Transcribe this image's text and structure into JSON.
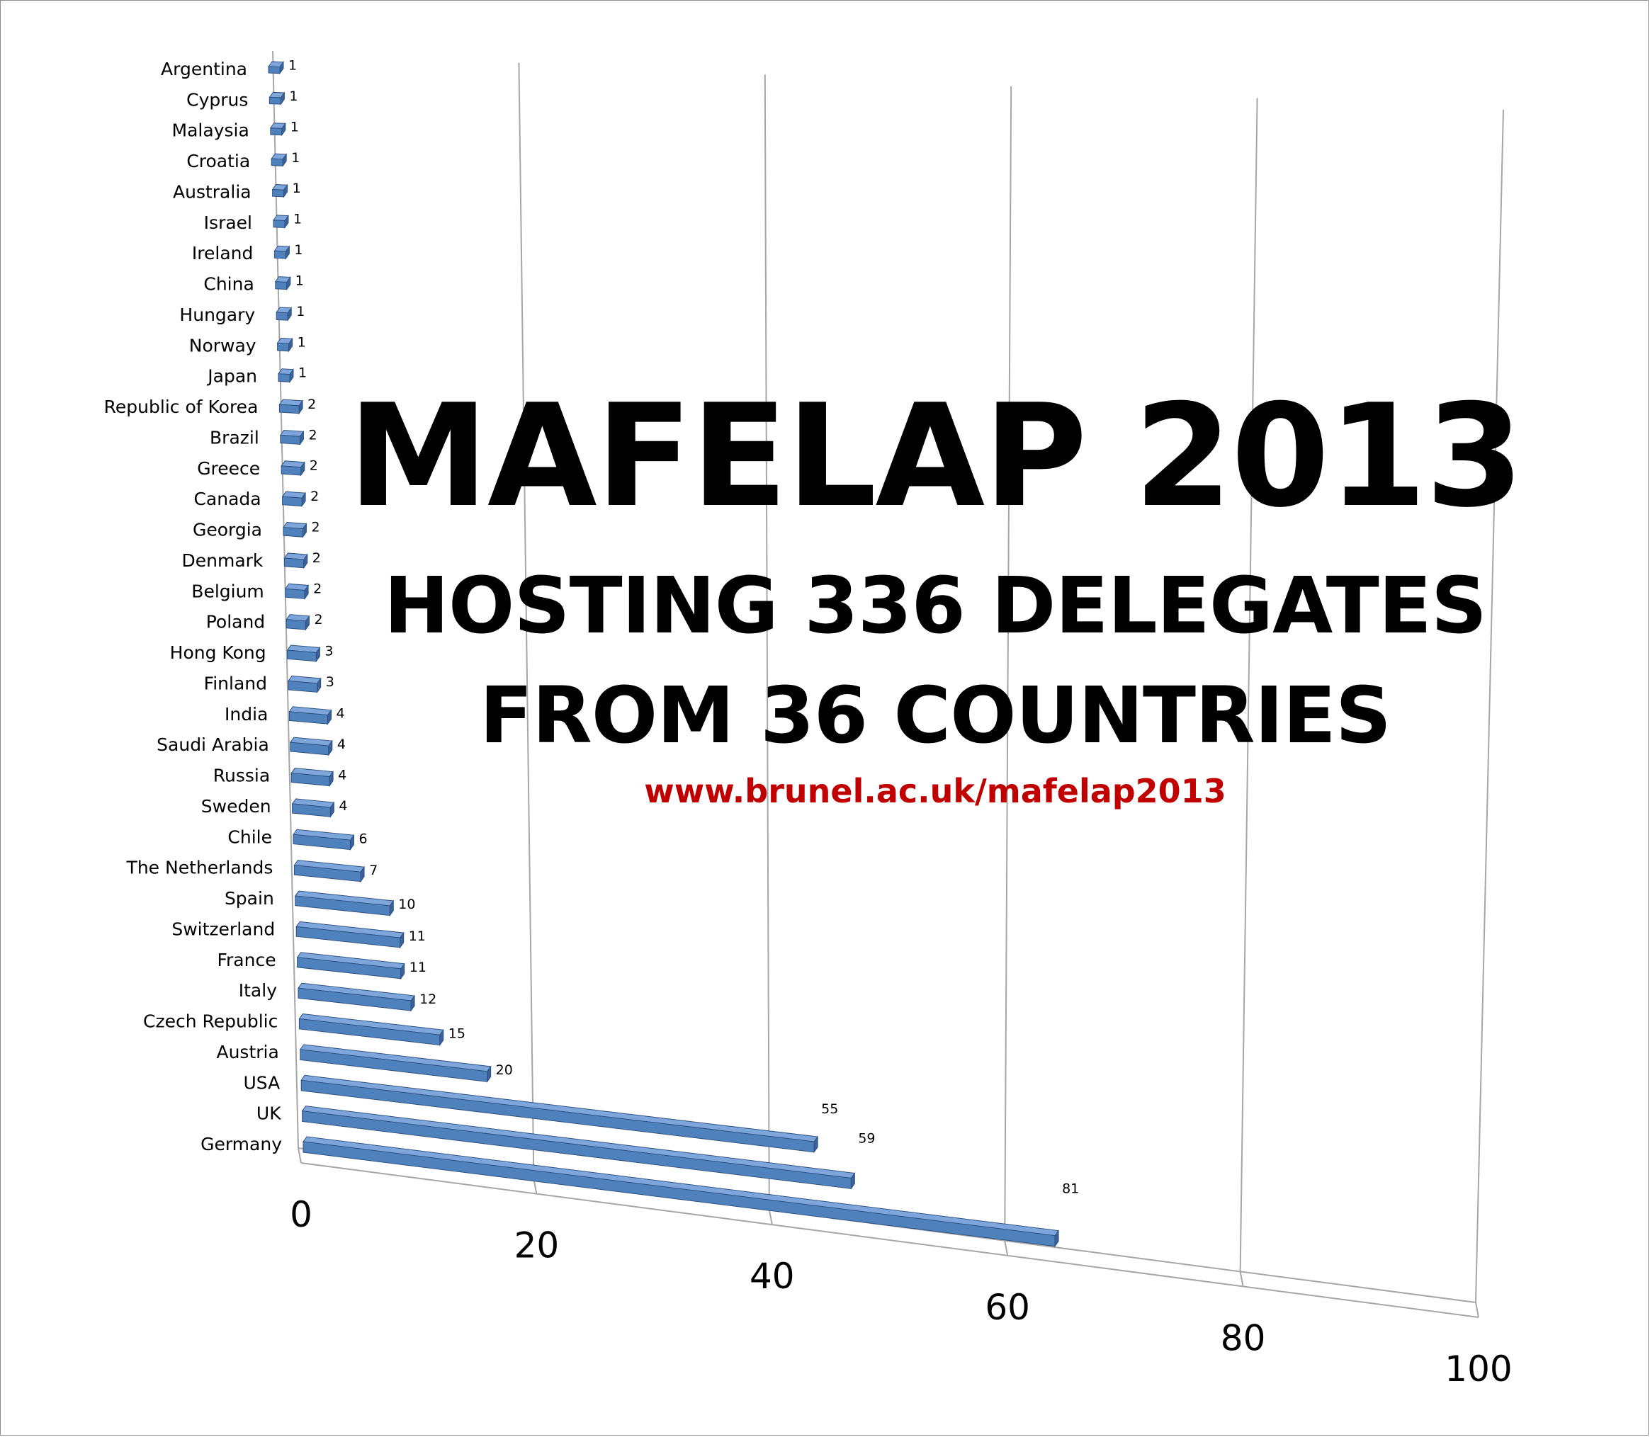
{
  "headline": {
    "title": "MAFELAP 2013",
    "subtitle_line1": "HOSTING 336 DELEGATES",
    "subtitle_line2": "FROM 36 COUNTRIES",
    "url": "www.brunel.ac.uk/mafelap2013"
  },
  "colors": {
    "bar_face": "#4f81bd",
    "bar_top": "#7ea6dc",
    "bar_end": "#3a6299",
    "bar_edge": "#2f5483",
    "gridline": "#a6a6a6",
    "url_text": "#c00000"
  },
  "chart_data": {
    "type": "bar",
    "orientation": "horizontal",
    "style": "3d-perspective",
    "categories": [
      "Argentina",
      "Cyprus",
      "Malaysia",
      "Croatia",
      "Australia",
      "Israel",
      "Ireland",
      "China",
      "Hungary",
      "Norway",
      "Japan",
      "Republic of Korea",
      "Brazil",
      "Greece",
      "Canada",
      "Georgia",
      "Denmark",
      "Belgium",
      "Poland",
      "Hong Kong",
      "Finland",
      "India",
      "Saudi Arabia",
      "Russia",
      "Sweden",
      "Chile",
      "The Netherlands",
      "Spain",
      "Switzerland",
      "France",
      "Italy",
      "Czech Republic",
      "Austria",
      "USA",
      "UK",
      "Germany"
    ],
    "values": [
      1,
      1,
      1,
      1,
      1,
      1,
      1,
      1,
      1,
      1,
      1,
      2,
      2,
      2,
      2,
      2,
      2,
      2,
      2,
      3,
      3,
      4,
      4,
      4,
      4,
      6,
      7,
      10,
      11,
      11,
      12,
      15,
      20,
      55,
      59,
      81
    ],
    "x_ticks": [
      0,
      20,
      40,
      60,
      80,
      100
    ],
    "xlim": [
      0,
      100
    ],
    "grid": true,
    "legend": "none"
  }
}
